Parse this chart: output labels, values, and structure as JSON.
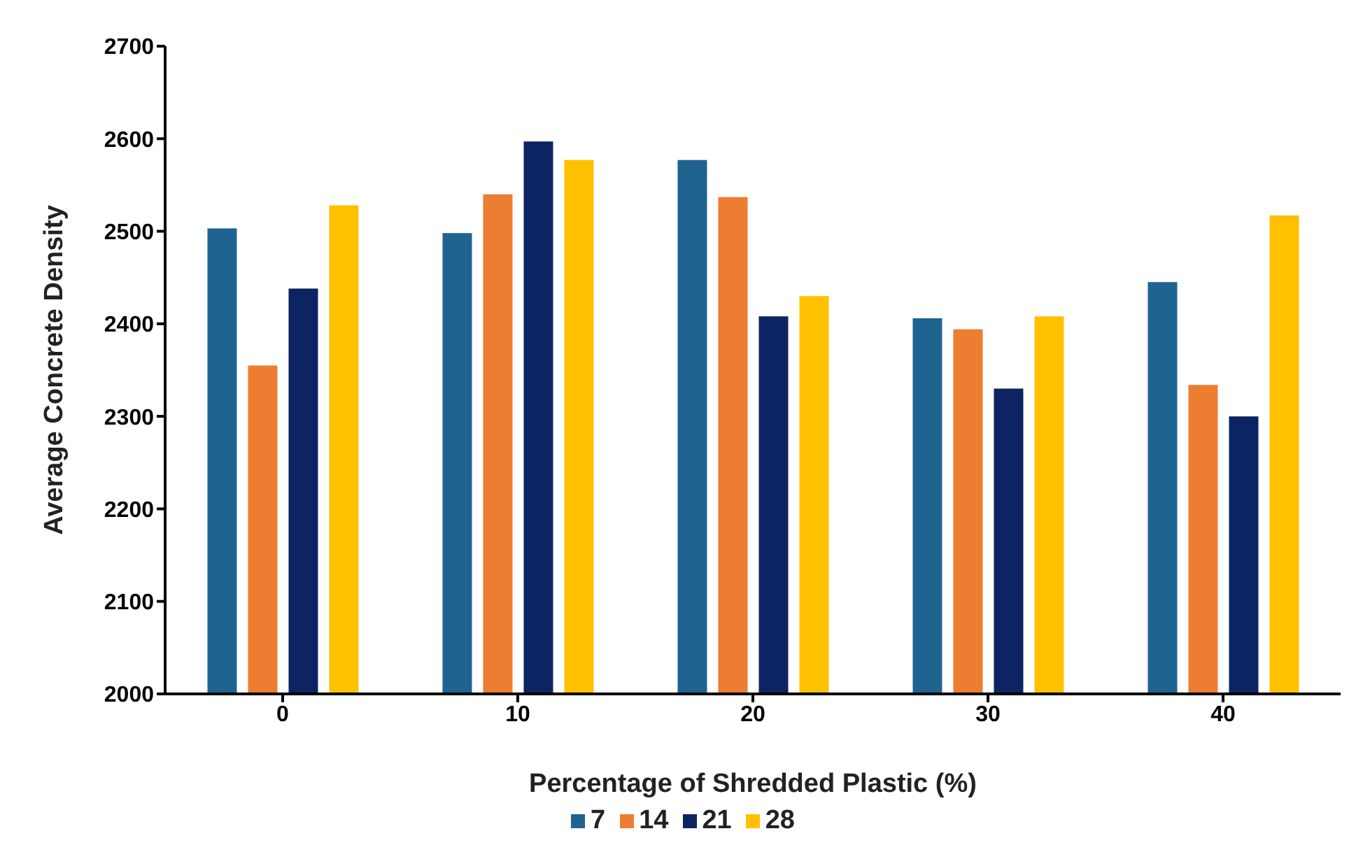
{
  "chart_data": {
    "type": "bar",
    "xlabel": "Percentage of Shredded Plastic (%)",
    "ylabel": "Average Concrete Density",
    "categories": [
      "0",
      "10",
      "20",
      "30",
      "40"
    ],
    "series": [
      {
        "name": "7",
        "color": "#1f6391",
        "values": [
          2503,
          2498,
          2577,
          2406,
          2445
        ]
      },
      {
        "name": "14",
        "color": "#ed7d31",
        "values": [
          2355,
          2540,
          2537,
          2394,
          2334
        ]
      },
      {
        "name": "21",
        "color": "#0c2461",
        "values": [
          2438,
          2597,
          2408,
          2330,
          2300
        ]
      },
      {
        "name": "28",
        "color": "#ffc000",
        "values": [
          2528,
          2577,
          2430,
          2408,
          2517
        ]
      }
    ],
    "ylim": [
      2000,
      2700
    ],
    "yticks": [
      2000,
      2100,
      2200,
      2300,
      2400,
      2500,
      2600,
      2700
    ],
    "grid": false,
    "legend": "bottom"
  }
}
